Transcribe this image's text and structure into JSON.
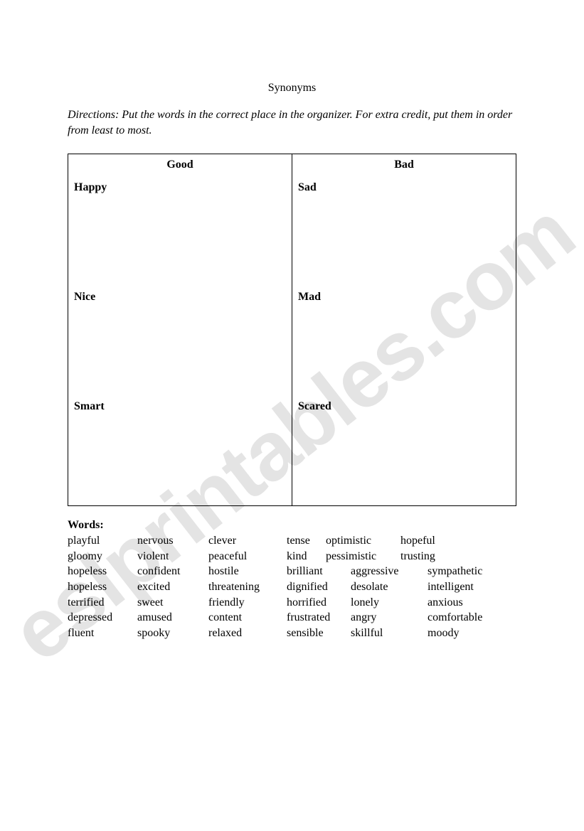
{
  "title": "Synonyms",
  "directions": "Directions:  Put the words in the correct place in the organizer. For extra credit, put them in order from least to most.",
  "table": {
    "headers": {
      "left": "Good",
      "right": "Bad"
    },
    "rows": [
      {
        "left": "Happy",
        "right": "Sad"
      },
      {
        "left": "Nice",
        "right": "Mad"
      },
      {
        "left": "Smart",
        "right": "Scared"
      }
    ]
  },
  "words_heading": "Words:",
  "word_rows": [
    {
      "c1": "playful",
      "c2": "nervous",
      "c3": "clever",
      "c4a": "tense",
      "c4b": "optimistic",
      "c5": "hopeful",
      "c6": ""
    },
    {
      "c1": "gloomy",
      "c2": "violent",
      "c3": "peaceful",
      "c4a": "kind",
      "c4b": "pessimistic",
      "c5": "trusting",
      "c6": ""
    },
    {
      "c1": "hopeless",
      "c2": "confident",
      "c3": "hostile",
      "c4": "brilliant",
      "c5": "aggressive",
      "c6": "sympathetic"
    },
    {
      "c1": "hopeless",
      "c2": "excited",
      "c3": "threatening",
      "c4": "dignified",
      "c5": "desolate",
      "c6": "intelligent"
    },
    {
      "c1": "terrified",
      "c2": "sweet",
      "c3": "friendly",
      "c4": "horrified",
      "c5": "lonely",
      "c6": "anxious"
    },
    {
      "c1": "depressed",
      "c2": "amused",
      "c3": "content",
      "c4": "frustrated",
      "c5": "angry",
      "c6": "comfortable"
    },
    {
      "c1": "fluent",
      "c2": "spooky",
      "c3": "relaxed",
      "c4": "sensible",
      "c5": "skillful",
      "c6": "moody"
    }
  ],
  "watermark": "eslprintables.com"
}
